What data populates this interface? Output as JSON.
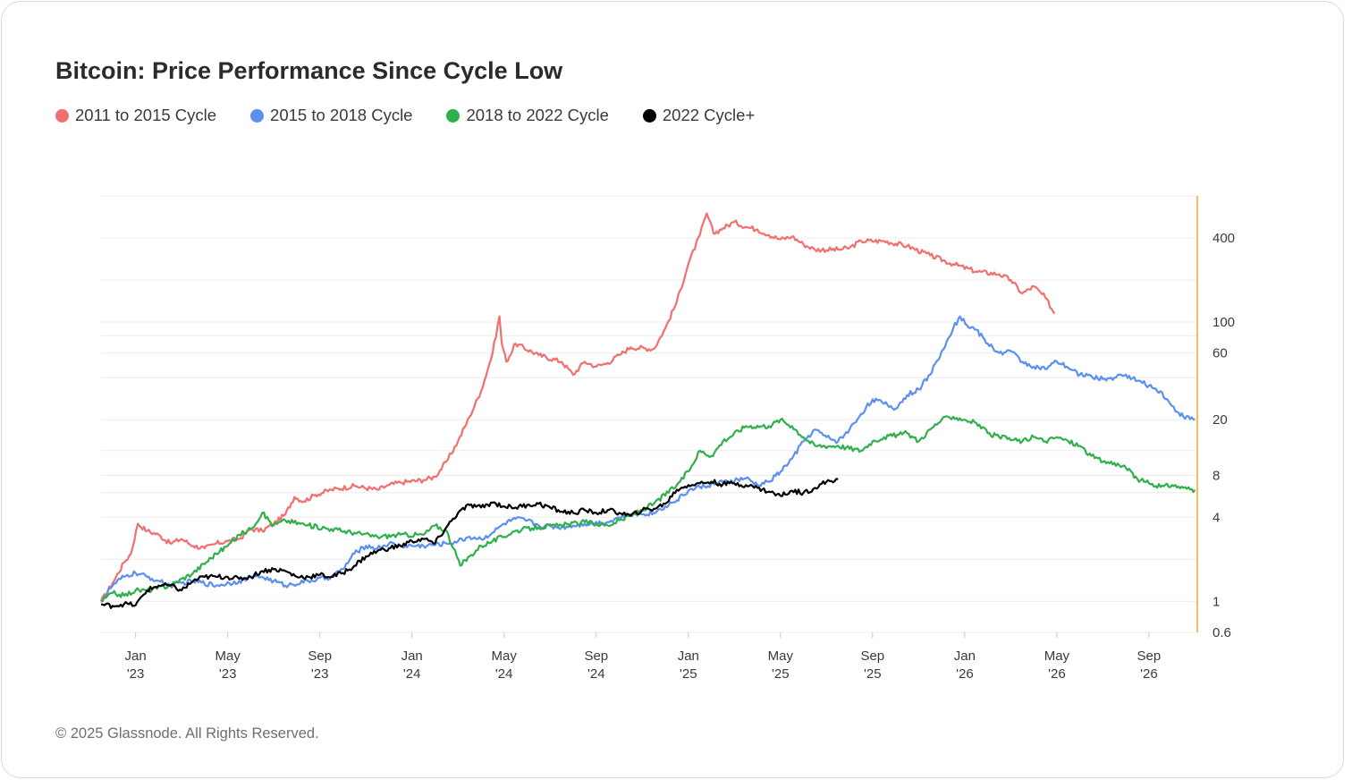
{
  "title": "Bitcoin: Price Performance Since Cycle Low",
  "copyright": "© 2025 Glassnode. All Rights Reserved.",
  "colors": {
    "c2011": "#f26f6f",
    "c2015": "#5b8ff0",
    "c2018": "#2fb04a",
    "c2022": "#000000",
    "axis_accent": "#f5a623",
    "grid": "#ececec"
  },
  "chart_data": {
    "type": "line",
    "title": "Bitcoin: Price Performance Since Cycle Low",
    "yscale": "log",
    "ylim": [
      0.6,
      800
    ],
    "xlim": [
      0,
      47.6
    ],
    "xunit": "months since Nov 2022",
    "y_ticks": [
      {
        "value": 0.6,
        "label": "0.6"
      },
      {
        "value": 1,
        "label": "1"
      },
      {
        "value": 4,
        "label": "4"
      },
      {
        "value": 8,
        "label": "8"
      },
      {
        "value": 20,
        "label": "20"
      },
      {
        "value": 60,
        "label": "60"
      },
      {
        "value": 100,
        "label": "100"
      },
      {
        "value": 400,
        "label": "400"
      }
    ],
    "gridlines": [
      0.6,
      1,
      2,
      4,
      6,
      8,
      12,
      20,
      40,
      60,
      80,
      100,
      200,
      400,
      800
    ],
    "x_ticks": [
      {
        "x": 1.5,
        "month": "Jan",
        "year": "'23"
      },
      {
        "x": 5.5,
        "month": "May",
        "year": "'23"
      },
      {
        "x": 9.5,
        "month": "Sep",
        "year": "'23"
      },
      {
        "x": 13.5,
        "month": "Jan",
        "year": "'24"
      },
      {
        "x": 17.5,
        "month": "May",
        "year": "'24"
      },
      {
        "x": 21.5,
        "month": "Sep",
        "year": "'24"
      },
      {
        "x": 25.5,
        "month": "Jan",
        "year": "'25"
      },
      {
        "x": 29.5,
        "month": "May",
        "year": "'25"
      },
      {
        "x": 33.5,
        "month": "Sep",
        "year": "'25"
      },
      {
        "x": 37.5,
        "month": "Jan",
        "year": "'26"
      },
      {
        "x": 41.5,
        "month": "May",
        "year": "'26"
      },
      {
        "x": 45.5,
        "month": "Sep",
        "year": "'26"
      }
    ],
    "series": [
      {
        "name": "2011 to 2015 Cycle",
        "key": "c2011",
        "points": [
          [
            0,
            1
          ],
          [
            0.5,
            1.35
          ],
          [
            1,
            1.9
          ],
          [
            1.3,
            2.2
          ],
          [
            1.6,
            3.6
          ],
          [
            2,
            3.2
          ],
          [
            2.5,
            3
          ],
          [
            3,
            2.6
          ],
          [
            3.5,
            2.8
          ],
          [
            4,
            2.5
          ],
          [
            4.5,
            2.4
          ],
          [
            5,
            2.6
          ],
          [
            5.5,
            2.7
          ],
          [
            6,
            2.8
          ],
          [
            6.5,
            3.3
          ],
          [
            7,
            3.2
          ],
          [
            7.5,
            3.6
          ],
          [
            8,
            4.2
          ],
          [
            8.4,
            5.6
          ],
          [
            8.8,
            5.2
          ],
          [
            9.3,
            5.8
          ],
          [
            10,
            6.3
          ],
          [
            11,
            6.7
          ],
          [
            12,
            6.3
          ],
          [
            12.5,
            6.8
          ],
          [
            13,
            7.1
          ],
          [
            14,
            7.4
          ],
          [
            14.5,
            7.8
          ],
          [
            15,
            10
          ],
          [
            15.5,
            14
          ],
          [
            16,
            21
          ],
          [
            16.5,
            32
          ],
          [
            17,
            60
          ],
          [
            17.3,
            110
          ],
          [
            17.4,
            70
          ],
          [
            17.6,
            52
          ],
          [
            18,
            70
          ],
          [
            19,
            58
          ],
          [
            20,
            52
          ],
          [
            20.5,
            42
          ],
          [
            21,
            52
          ],
          [
            21.5,
            48
          ],
          [
            22,
            51
          ],
          [
            22.5,
            58
          ],
          [
            23,
            66
          ],
          [
            24,
            64
          ],
          [
            24.5,
            90
          ],
          [
            25,
            140
          ],
          [
            25.5,
            260
          ],
          [
            26,
            420
          ],
          [
            26.3,
            600
          ],
          [
            26.6,
            430
          ],
          [
            27,
            470
          ],
          [
            27.5,
            520
          ],
          [
            28,
            480
          ],
          [
            28.5,
            460
          ],
          [
            29,
            420
          ],
          [
            29.5,
            390
          ],
          [
            30,
            410
          ],
          [
            30.5,
            360
          ],
          [
            31,
            330
          ],
          [
            32,
            330
          ],
          [
            32.5,
            340
          ],
          [
            33,
            380
          ],
          [
            34,
            380
          ],
          [
            35,
            350
          ],
          [
            36,
            300
          ],
          [
            37,
            260
          ],
          [
            38,
            230
          ],
          [
            39,
            220
          ],
          [
            39.5,
            200
          ],
          [
            40,
            160
          ],
          [
            40.5,
            180
          ],
          [
            41,
            150
          ],
          [
            41.4,
            115
          ]
        ]
      },
      {
        "name": "2015 to 2018 Cycle",
        "key": "c2015",
        "points": [
          [
            0,
            1
          ],
          [
            0.5,
            1.3
          ],
          [
            1,
            1.5
          ],
          [
            1.5,
            1.6
          ],
          [
            2,
            1.5
          ],
          [
            2.5,
            1.4
          ],
          [
            3,
            1.3
          ],
          [
            4,
            1.4
          ],
          [
            5,
            1.3
          ],
          [
            6,
            1.4
          ],
          [
            6.5,
            1.5
          ],
          [
            7,
            1.5
          ],
          [
            7.5,
            1.4
          ],
          [
            8,
            1.3
          ],
          [
            9,
            1.4
          ],
          [
            10,
            1.5
          ],
          [
            10.5,
            1.7
          ],
          [
            11,
            2.2
          ],
          [
            11.5,
            2.5
          ],
          [
            12,
            2.4
          ],
          [
            12.5,
            2.6
          ],
          [
            13,
            2.5
          ],
          [
            14,
            2.5
          ],
          [
            15,
            2.6
          ],
          [
            15.5,
            2.7
          ],
          [
            16,
            2.9
          ],
          [
            16.5,
            2.8
          ],
          [
            17,
            3.1
          ],
          [
            17.5,
            3.6
          ],
          [
            18,
            3.9
          ],
          [
            18.5,
            3.8
          ],
          [
            19,
            3.5
          ],
          [
            20,
            3.4
          ],
          [
            20.5,
            3.5
          ],
          [
            21,
            3.6
          ],
          [
            22,
            3.7
          ],
          [
            22.5,
            4
          ],
          [
            23,
            4.2
          ],
          [
            24,
            4.3
          ],
          [
            24.5,
            4.8
          ],
          [
            25,
            5.3
          ],
          [
            25.5,
            6.2
          ],
          [
            26,
            6.6
          ],
          [
            27,
            7.1
          ],
          [
            28,
            7.6
          ],
          [
            28.5,
            6.8
          ],
          [
            29,
            7.2
          ],
          [
            29.5,
            8.5
          ],
          [
            30,
            10.5
          ],
          [
            30.5,
            14
          ],
          [
            31,
            17
          ],
          [
            31.5,
            15
          ],
          [
            32,
            14
          ],
          [
            32.5,
            17
          ],
          [
            33,
            22
          ],
          [
            33.5,
            28
          ],
          [
            34,
            26
          ],
          [
            34.5,
            24
          ],
          [
            35,
            30
          ],
          [
            35.5,
            33
          ],
          [
            36,
            42
          ],
          [
            36.5,
            62
          ],
          [
            37,
            90
          ],
          [
            37.3,
            110
          ],
          [
            37.6,
            95
          ],
          [
            38,
            88
          ],
          [
            38.5,
            70
          ],
          [
            39,
            60
          ],
          [
            39.5,
            62
          ],
          [
            40,
            52
          ],
          [
            40.5,
            48
          ],
          [
            41,
            46
          ],
          [
            41.5,
            52
          ],
          [
            42,
            47
          ],
          [
            42.5,
            42
          ],
          [
            43,
            41
          ],
          [
            43.5,
            39
          ],
          [
            44,
            40
          ],
          [
            44.5,
            42
          ],
          [
            45,
            38
          ],
          [
            45.5,
            35
          ],
          [
            46,
            32
          ],
          [
            46.5,
            25
          ],
          [
            47,
            21
          ],
          [
            47.5,
            20
          ]
        ]
      },
      {
        "name": "2018 to 2022 Cycle",
        "key": "c2018",
        "points": [
          [
            0,
            1
          ],
          [
            0.5,
            1.15
          ],
          [
            1,
            1.1
          ],
          [
            1.5,
            1.2
          ],
          [
            2,
            1.2
          ],
          [
            3,
            1.3
          ],
          [
            4,
            1.6
          ],
          [
            5,
            2.2
          ],
          [
            5.5,
            2.5
          ],
          [
            6,
            3
          ],
          [
            6.5,
            3.3
          ],
          [
            7,
            4.3
          ],
          [
            7.5,
            3.5
          ],
          [
            8,
            3.8
          ],
          [
            9,
            3.5
          ],
          [
            10,
            3.3
          ],
          [
            11,
            3.1
          ],
          [
            12,
            2.9
          ],
          [
            13,
            3
          ],
          [
            14,
            3
          ],
          [
            14.5,
            3.5
          ],
          [
            15,
            3.2
          ],
          [
            15.3,
            2.4
          ],
          [
            15.6,
            1.8
          ],
          [
            16,
            2.1
          ],
          [
            16.5,
            2.5
          ],
          [
            17,
            2.7
          ],
          [
            18,
            3.2
          ],
          [
            19,
            3.4
          ],
          [
            20,
            3.5
          ],
          [
            21,
            3.7
          ],
          [
            22,
            3.5
          ],
          [
            23,
            4.1
          ],
          [
            24,
            5
          ],
          [
            25,
            6.8
          ],
          [
            25.5,
            8.5
          ],
          [
            26,
            12
          ],
          [
            26.5,
            11
          ],
          [
            27,
            14
          ],
          [
            28,
            18
          ],
          [
            29,
            18
          ],
          [
            29.5,
            20
          ],
          [
            30,
            18
          ],
          [
            30.5,
            15
          ],
          [
            31,
            13
          ],
          [
            32,
            13
          ],
          [
            33,
            12
          ],
          [
            33.5,
            14
          ],
          [
            34,
            15
          ],
          [
            35,
            16
          ],
          [
            35.5,
            14
          ],
          [
            36,
            17
          ],
          [
            36.5,
            20
          ],
          [
            37,
            21
          ],
          [
            37.5,
            20
          ],
          [
            38,
            19
          ],
          [
            38.5,
            16
          ],
          [
            39,
            15
          ],
          [
            40,
            14
          ],
          [
            40.5,
            15
          ],
          [
            41,
            14
          ],
          [
            41.5,
            15
          ],
          [
            42,
            14
          ],
          [
            42.5,
            13
          ],
          [
            43,
            11
          ],
          [
            43.5,
            10
          ],
          [
            44,
            9.8
          ],
          [
            44.5,
            9
          ],
          [
            45,
            7.5
          ],
          [
            45.5,
            7
          ],
          [
            46,
            6.6
          ],
          [
            46.5,
            6.8
          ],
          [
            47,
            6.5
          ],
          [
            47.5,
            6.3
          ]
        ]
      },
      {
        "name": "2022 Cycle+",
        "key": "c2022",
        "points": [
          [
            0,
            0.95
          ],
          [
            0.5,
            0.93
          ],
          [
            1,
            0.96
          ],
          [
            1.5,
            0.94
          ],
          [
            2,
            1.2
          ],
          [
            2.5,
            1.3
          ],
          [
            3,
            1.3
          ],
          [
            3.5,
            1.2
          ],
          [
            4,
            1.4
          ],
          [
            4.5,
            1.5
          ],
          [
            5,
            1.5
          ],
          [
            5.5,
            1.5
          ],
          [
            6,
            1.45
          ],
          [
            6.5,
            1.5
          ],
          [
            7,
            1.65
          ],
          [
            7.5,
            1.7
          ],
          [
            8,
            1.65
          ],
          [
            8.5,
            1.5
          ],
          [
            9,
            1.5
          ],
          [
            9.5,
            1.55
          ],
          [
            10,
            1.5
          ],
          [
            10.5,
            1.6
          ],
          [
            11,
            1.8
          ],
          [
            11.5,
            2.1
          ],
          [
            12,
            2.3
          ],
          [
            12.5,
            2.4
          ],
          [
            13,
            2.5
          ],
          [
            13.5,
            2.7
          ],
          [
            14,
            2.8
          ],
          [
            14.5,
            2.6
          ],
          [
            15,
            3.4
          ],
          [
            15.5,
            4.3
          ],
          [
            16,
            4.9
          ],
          [
            16.5,
            4.7
          ],
          [
            17,
            5.1
          ],
          [
            17.5,
            4.8
          ],
          [
            18,
            4.7
          ],
          [
            18.5,
            4.9
          ],
          [
            19,
            5
          ],
          [
            19.5,
            4.7
          ],
          [
            20,
            4.4
          ],
          [
            20.5,
            4.3
          ],
          [
            21,
            4.5
          ],
          [
            21.5,
            4.3
          ],
          [
            22,
            4.5
          ],
          [
            22.5,
            4.3
          ],
          [
            23,
            4.1
          ],
          [
            23.5,
            4.5
          ],
          [
            24,
            4.6
          ],
          [
            24.5,
            5
          ],
          [
            25,
            6.3
          ],
          [
            25.5,
            6.8
          ],
          [
            26,
            7
          ],
          [
            26.5,
            7.2
          ],
          [
            27,
            6.9
          ],
          [
            27.5,
            7
          ],
          [
            28,
            6.8
          ],
          [
            28.5,
            6.5
          ],
          [
            29,
            6.1
          ],
          [
            29.5,
            5.7
          ],
          [
            30,
            6.2
          ],
          [
            30.5,
            6
          ],
          [
            31,
            6.5
          ],
          [
            31.5,
            7.2
          ],
          [
            32,
            7.5
          ]
        ]
      }
    ]
  }
}
